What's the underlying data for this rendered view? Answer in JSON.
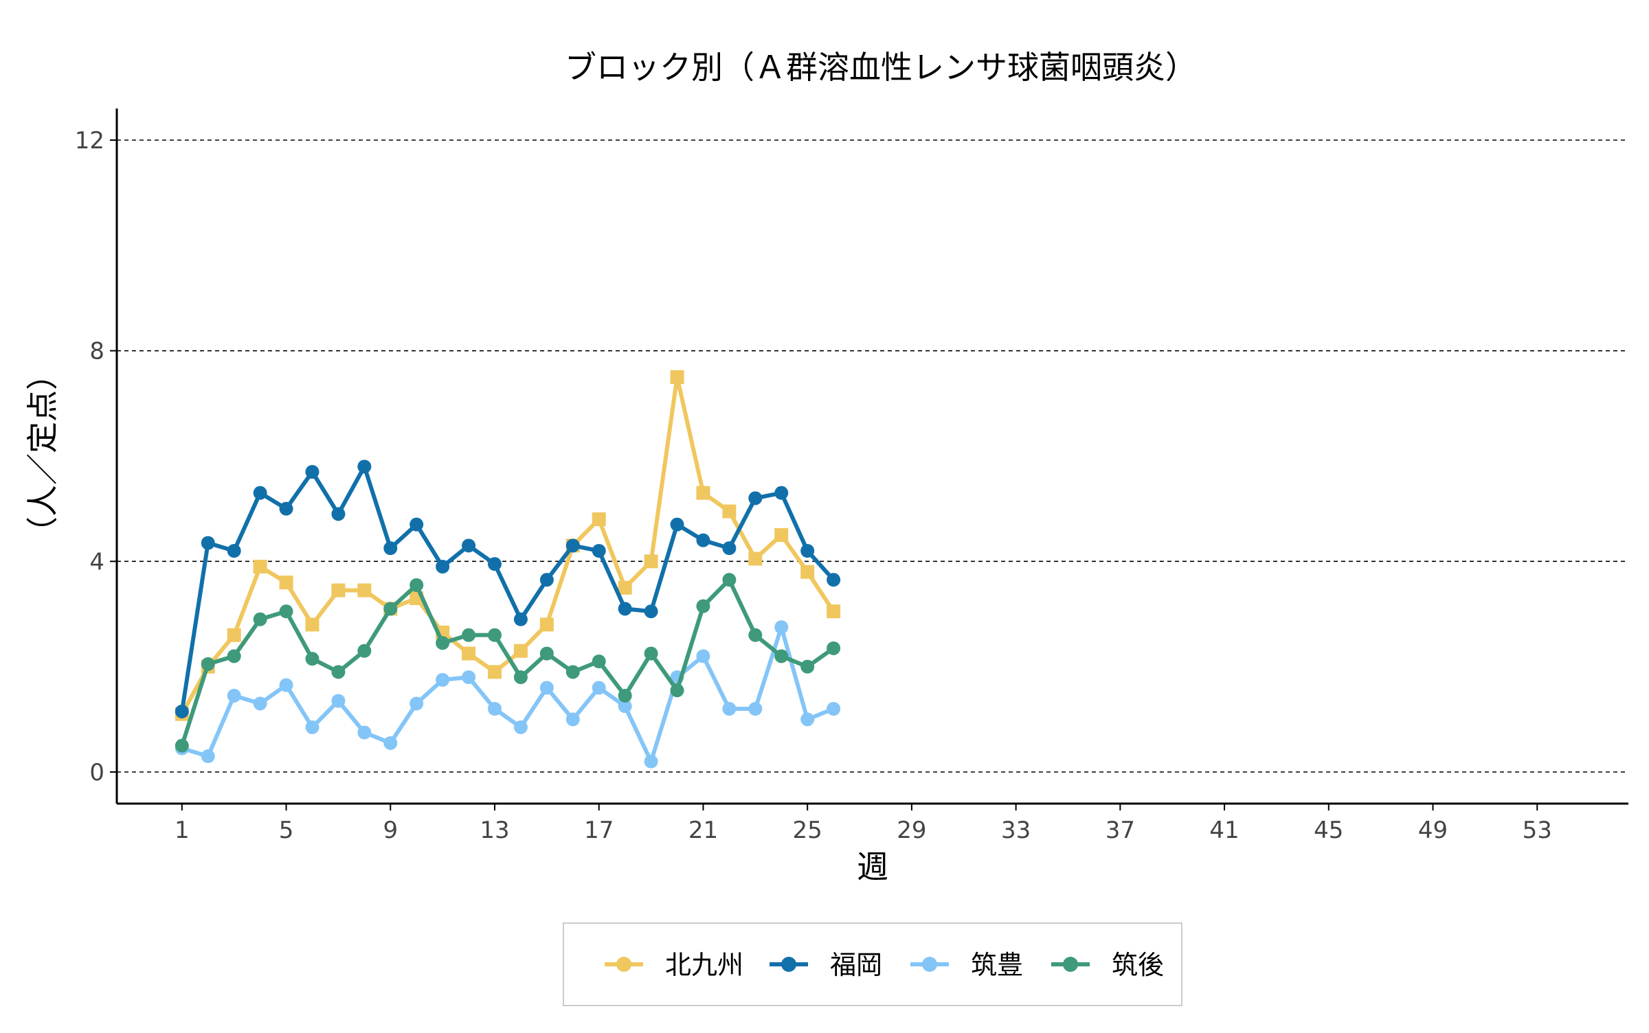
{
  "chart_data": {
    "type": "line",
    "title": "ブロック別（Ａ群溶血性レンサ球菌咽頭炎）",
    "xlabel": "週",
    "ylabel": "（人／定点）",
    "xlim": [
      -1.5,
      56.5
    ],
    "ylim": [
      -0.6,
      12.6
    ],
    "x_ticks": [
      1,
      5,
      9,
      13,
      17,
      21,
      25,
      29,
      33,
      37,
      41,
      45,
      49,
      53
    ],
    "y_ticks": [
      0,
      4,
      8,
      12
    ],
    "grid": "horizontal dashed",
    "legend_position": "bottom",
    "x": [
      1,
      2,
      3,
      4,
      5,
      6,
      7,
      8,
      9,
      10,
      11,
      12,
      13,
      14,
      15,
      16,
      17,
      18,
      19,
      20,
      21,
      22,
      23,
      24,
      25,
      26
    ],
    "series": [
      {
        "name": "北九州",
        "color": "#F0C75E",
        "marker": "square",
        "values": [
          1.1,
          2.0,
          2.6,
          3.9,
          3.6,
          2.8,
          3.45,
          3.45,
          3.1,
          3.3,
          2.65,
          2.25,
          1.9,
          2.3,
          2.8,
          4.3,
          4.8,
          3.5,
          4.0,
          7.5,
          5.3,
          4.95,
          4.05,
          4.5,
          3.8,
          3.05
        ]
      },
      {
        "name": "福岡",
        "color": "#1170AA",
        "marker": "circle",
        "values": [
          1.15,
          4.35,
          4.2,
          5.3,
          5.0,
          5.7,
          4.9,
          5.8,
          4.25,
          4.7,
          3.9,
          4.3,
          3.95,
          2.9,
          3.65,
          4.3,
          4.2,
          3.1,
          3.05,
          4.7,
          4.4,
          4.25,
          5.2,
          5.3,
          4.2,
          3.65
        ]
      },
      {
        "name": "筑豊",
        "color": "#84C5F8",
        "marker": "circle",
        "values": [
          0.45,
          0.3,
          1.45,
          1.3,
          1.65,
          0.85,
          1.35,
          0.75,
          0.55,
          1.3,
          1.75,
          1.8,
          1.2,
          0.85,
          1.6,
          1.0,
          1.6,
          1.25,
          0.2,
          1.8,
          2.2,
          1.2,
          1.2,
          2.75,
          1.0,
          1.2
        ]
      },
      {
        "name": "筑後",
        "color": "#3E9A7A",
        "marker": "circle",
        "values": [
          0.5,
          2.05,
          2.2,
          2.9,
          3.05,
          2.15,
          1.9,
          2.3,
          3.1,
          3.55,
          2.45,
          2.6,
          2.6,
          1.8,
          2.25,
          1.9,
          2.1,
          1.45,
          2.25,
          1.55,
          3.15,
          3.65,
          2.6,
          2.2,
          2.0,
          2.35
        ]
      }
    ]
  }
}
